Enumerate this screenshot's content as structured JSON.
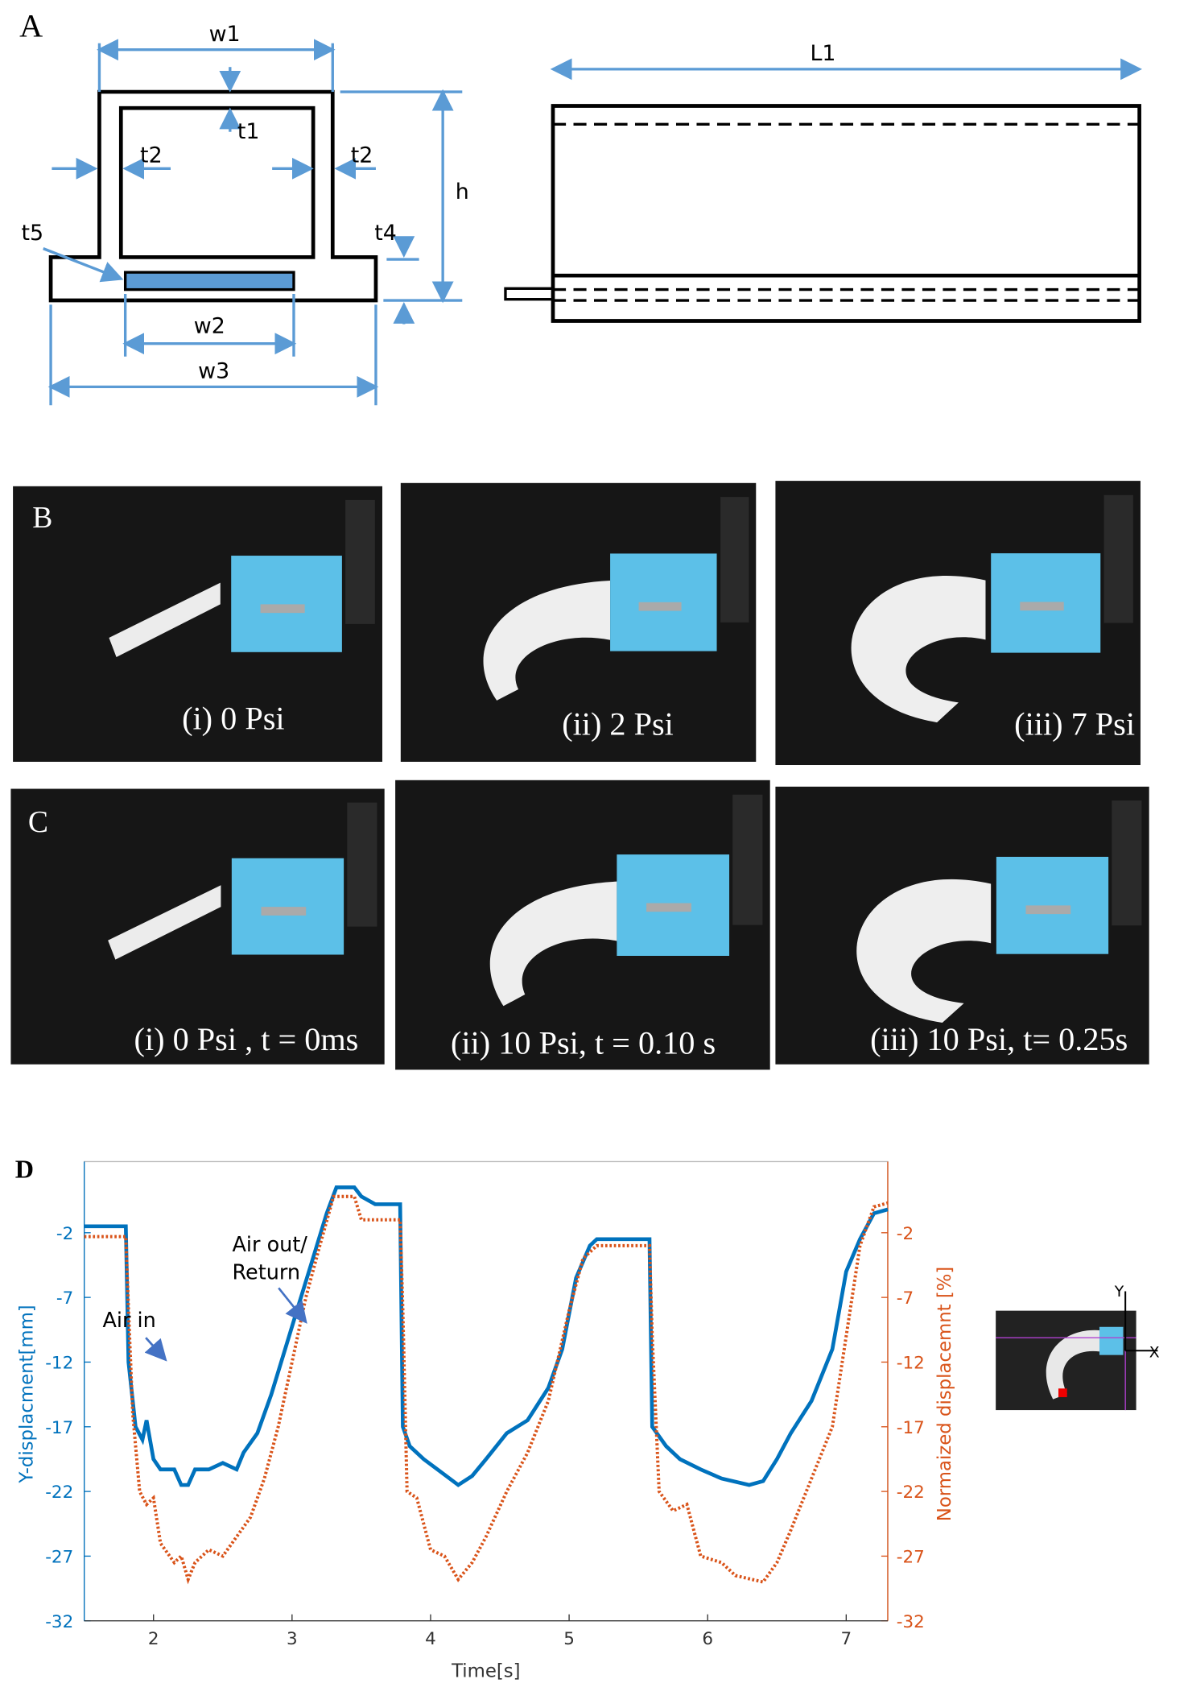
{
  "figure": {
    "panel_a": {
      "label": "A",
      "dims": [
        "w1",
        "t1",
        "t2",
        "t2",
        "h",
        "t4",
        "t5",
        "w2",
        "w3",
        "L1"
      ]
    },
    "panel_b": {
      "label": "B",
      "captions": [
        "(i) 0 Psi",
        "(ii) 2 Psi",
        "(iii) 7 Psi"
      ]
    },
    "panel_c": {
      "label": "C",
      "captions": [
        "(i) 0 Psi , t = 0ms",
        "(ii) 10 Psi, t = 0.10 s",
        "(iii) 10 Psi, t= 0.25s"
      ]
    },
    "panel_d": {
      "label": "D",
      "inset_axes": [
        "Y",
        "X"
      ]
    }
  },
  "chart_data": {
    "type": "line",
    "xlabel": "Time[s]",
    "ylabel": "Y-displacment[mm]",
    "y2label": "Normaized displacemnt [%]",
    "annotations": [
      "Air in",
      "Air out/",
      "Return"
    ],
    "xlim": [
      1.5,
      7.3
    ],
    "xticks": [
      2,
      3,
      4,
      5,
      6,
      7
    ],
    "ylim": [
      -32,
      3.5
    ],
    "yticks": [
      -2,
      -7,
      -12,
      -17,
      -22,
      -27,
      -32
    ],
    "y2lim": [
      -32,
      3.5
    ],
    "y2ticks": [
      -2,
      -7,
      -12,
      -17,
      -22,
      -27,
      -32
    ],
    "grid": false,
    "series": [
      {
        "name": "Y-displacment",
        "color": "#0072bd",
        "style": "solid",
        "axis": "y",
        "x": [
          1.5,
          1.8,
          1.82,
          1.87,
          1.92,
          1.95,
          2.0,
          2.05,
          2.15,
          2.2,
          2.25,
          2.3,
          2.4,
          2.5,
          2.6,
          2.65,
          2.75,
          2.85,
          2.95,
          3.05,
          3.15,
          3.25,
          3.32,
          3.45,
          3.5,
          3.6,
          3.78,
          3.8,
          3.85,
          3.95,
          4.05,
          4.2,
          4.3,
          4.4,
          4.55,
          4.7,
          4.85,
          4.95,
          5.05,
          5.15,
          5.2,
          5.58,
          5.6,
          5.7,
          5.8,
          5.95,
          6.1,
          6.3,
          6.4,
          6.5,
          6.6,
          6.75,
          6.9,
          7.0,
          7.1,
          7.2,
          7.3
        ],
        "values": [
          -1.5,
          -1.5,
          -12,
          -17,
          -18,
          -16.5,
          -19.5,
          -20.3,
          -20.3,
          -21.5,
          -21.5,
          -20.3,
          -20.3,
          -19.8,
          -20.3,
          -19,
          -17.5,
          -14.5,
          -11,
          -7.5,
          -4,
          -0.5,
          1.5,
          1.5,
          0.8,
          0.2,
          0.2,
          -17,
          -18.5,
          -19.5,
          -20.3,
          -21.5,
          -20.8,
          -19.5,
          -17.5,
          -16.5,
          -14,
          -11,
          -5.5,
          -3,
          -2.5,
          -2.5,
          -17,
          -18.5,
          -19.5,
          -20.3,
          -21,
          -21.5,
          -21.2,
          -19.5,
          -17.5,
          -15,
          -11,
          -5,
          -2.5,
          -0.5,
          -0.2
        ]
      },
      {
        "name": "Normaized displacemnt",
        "color": "#d95319",
        "style": "dotted",
        "axis": "y2",
        "x": [
          1.5,
          1.8,
          1.82,
          1.85,
          1.9,
          1.95,
          2.0,
          2.05,
          2.15,
          2.2,
          2.25,
          2.3,
          2.4,
          2.5,
          2.6,
          2.7,
          2.8,
          2.9,
          3.0,
          3.1,
          3.2,
          3.3,
          3.45,
          3.5,
          3.78,
          3.8,
          3.83,
          3.9,
          4.0,
          4.1,
          4.2,
          4.3,
          4.4,
          4.55,
          4.7,
          4.85,
          5.0,
          5.1,
          5.2,
          5.58,
          5.6,
          5.65,
          5.75,
          5.85,
          5.95,
          6.1,
          6.2,
          6.4,
          6.5,
          6.6,
          6.75,
          6.9,
          7.0,
          7.1,
          7.2,
          7.3
        ],
        "values": [
          -2.3,
          -2.3,
          -8,
          -16,
          -22,
          -23,
          -22.5,
          -26,
          -27.5,
          -27,
          -28.8,
          -27.5,
          -26.5,
          -27,
          -25.5,
          -24,
          -21,
          -17,
          -12,
          -7,
          -3,
          0.8,
          0.8,
          -1,
          -1,
          -8,
          -22,
          -22.5,
          -26.5,
          -27,
          -28.8,
          -27.5,
          -25.5,
          -22,
          -19,
          -15,
          -8,
          -4,
          -3,
          -3,
          -10,
          -22,
          -23.5,
          -23,
          -27,
          -27.5,
          -28.5,
          -29,
          -27.5,
          -25,
          -21,
          -17,
          -10,
          -3,
          0,
          0.3
        ]
      }
    ]
  }
}
